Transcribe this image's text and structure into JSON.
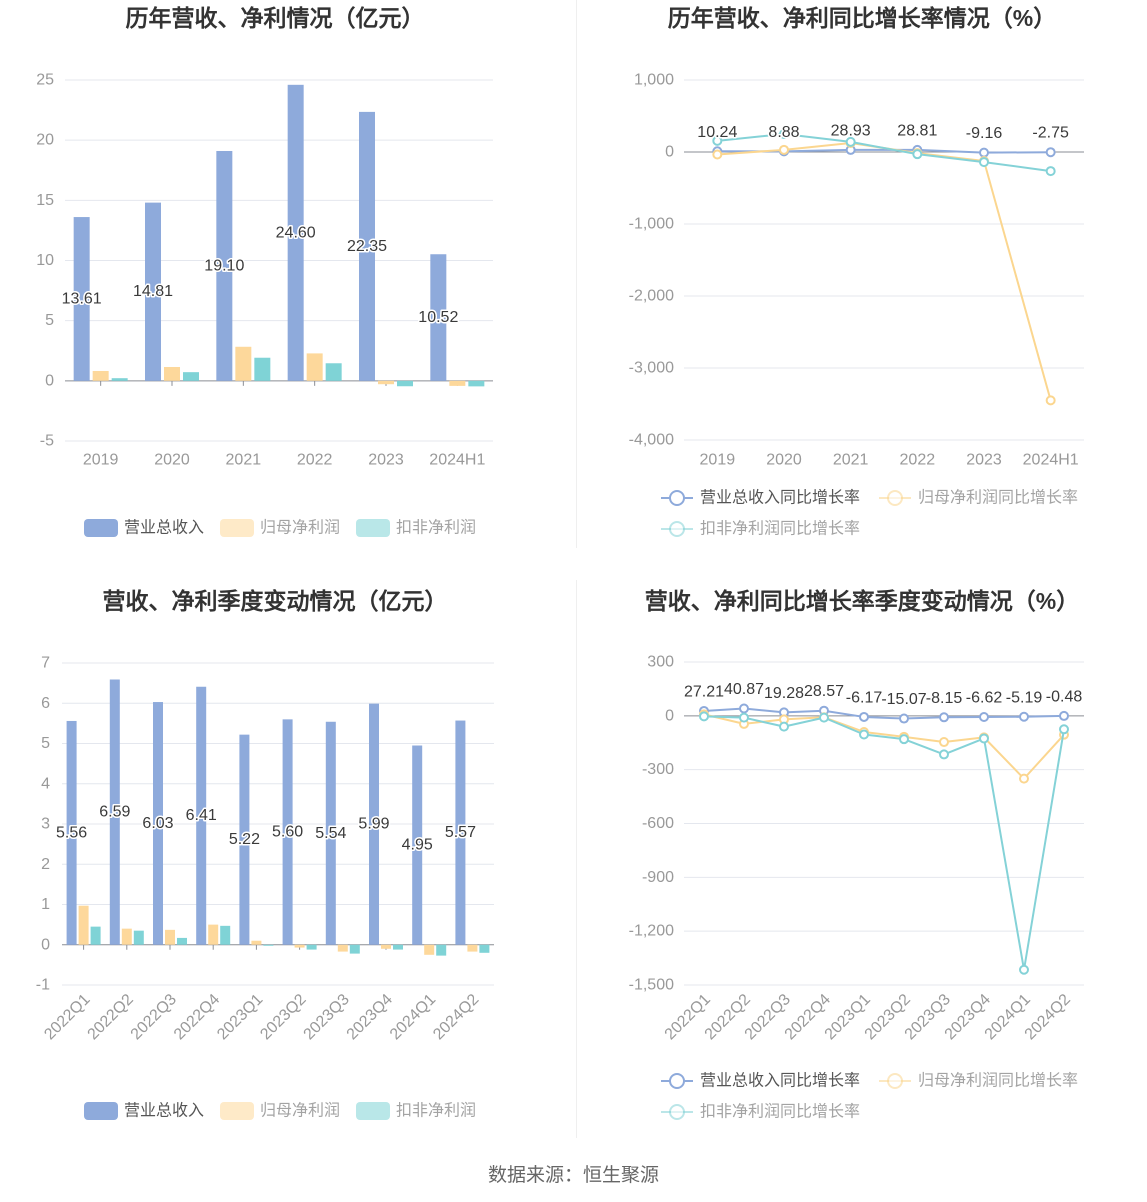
{
  "chart_data": [
    {
      "type": "bar",
      "title": "历年营收、净利情况（亿元）",
      "categories": [
        "2019",
        "2020",
        "2021",
        "2022",
        "2023",
        "2024H1"
      ],
      "ylim": [
        -5,
        25
      ],
      "ytick_labels": [
        "25",
        "20",
        "15",
        "10",
        "5",
        "0",
        "-5"
      ],
      "grid": true,
      "legend": "bottom",
      "series": [
        {
          "name": "营业总收入",
          "color": "#8eaadb",
          "values": [
            13.61,
            14.81,
            19.1,
            24.6,
            22.35,
            10.52
          ],
          "labels": [
            "13.61",
            "14.81",
            "19.10",
            "24.60",
            "22.35",
            "10.52"
          ]
        },
        {
          "name": "归母净利润",
          "color": "#fdd89b",
          "values": [
            0.82,
            1.15,
            2.83,
            2.28,
            -0.28,
            -0.42
          ]
        },
        {
          "name": "扣非净利润",
          "color": "#7fd3d6",
          "values": [
            0.22,
            0.72,
            1.92,
            1.46,
            -0.45,
            -0.46
          ]
        }
      ]
    },
    {
      "type": "line",
      "title": "历年营收、净利同比增长率情况（%）",
      "categories": [
        "2019",
        "2020",
        "2021",
        "2022",
        "2023",
        "2024H1"
      ],
      "ylim": [
        -4000,
        1000
      ],
      "ytick_labels": [
        "1,000",
        "0",
        "-1,000",
        "-2,000",
        "-3,000",
        "-4,000"
      ],
      "grid": true,
      "legend": "bottom",
      "series": [
        {
          "name": "营业总收入同比增长率",
          "color": "#8eaadb",
          "values": [
            10.24,
            8.88,
            28.93,
            28.81,
            -9.16,
            -2.75
          ],
          "labels": [
            "10.24",
            "8.88",
            "28.93",
            "28.81",
            "-9.16",
            "-2.75"
          ]
        },
        {
          "name": "归母净利润同比增长率",
          "color": "#fbd68f",
          "values": [
            -35,
            30,
            125,
            -15,
            -125,
            -3450
          ]
        },
        {
          "name": "扣非净利润同比增长率",
          "color": "#84d2d7",
          "values": [
            155,
            250,
            140,
            -30,
            -140,
            -265
          ]
        }
      ]
    },
    {
      "type": "bar",
      "title": "营收、净利季度变动情况（亿元）",
      "categories": [
        "2022Q1",
        "2022Q2",
        "2022Q3",
        "2022Q4",
        "2023Q1",
        "2023Q2",
        "2023Q3",
        "2023Q4",
        "2024Q1",
        "2024Q2"
      ],
      "ylim": [
        -1,
        7
      ],
      "ytick_labels": [
        "7",
        "6",
        "5",
        "4",
        "3",
        "2",
        "1",
        "0",
        "-1"
      ],
      "grid": true,
      "legend": "bottom",
      "series": [
        {
          "name": "营业总收入",
          "color": "#8eaadb",
          "values": [
            5.56,
            6.59,
            6.03,
            6.41,
            5.22,
            5.6,
            5.54,
            5.99,
            4.95,
            5.57
          ],
          "labels": [
            "5.56",
            "6.59",
            "6.03",
            "6.41",
            "5.22",
            "5.60",
            "5.54",
            "5.99",
            "4.95",
            "5.57"
          ]
        },
        {
          "name": "归母净利润",
          "color": "#fdd89b",
          "values": [
            0.97,
            0.4,
            0.37,
            0.5,
            0.1,
            -0.07,
            -0.17,
            -0.1,
            -0.25,
            -0.17
          ]
        },
        {
          "name": "扣非净利润",
          "color": "#7fd3d6",
          "values": [
            0.45,
            0.35,
            0.17,
            0.47,
            -0.02,
            -0.12,
            -0.22,
            -0.12,
            -0.27,
            -0.2
          ]
        }
      ]
    },
    {
      "type": "line",
      "title": "营收、净利同比增长率季度变动情况（%）",
      "categories": [
        "2022Q1",
        "2022Q2",
        "2022Q3",
        "2022Q4",
        "2023Q1",
        "2023Q2",
        "2023Q3",
        "2023Q4",
        "2024Q1",
        "2024Q2"
      ],
      "ylim": [
        -1500,
        300
      ],
      "ytick_labels": [
        "300",
        "0",
        "-300",
        "-600",
        "-900",
        "-1,200",
        "-1,500"
      ],
      "grid": true,
      "legend": "bottom",
      "series": [
        {
          "name": "营业总收入同比增长率",
          "color": "#8eaadb",
          "values": [
            27.21,
            40.87,
            19.28,
            28.57,
            -6.17,
            -15.07,
            -8.15,
            -6.62,
            -5.19,
            -0.48
          ],
          "labels": [
            "27.21",
            "40.87",
            "19.28",
            "28.57",
            "-6.17",
            "-15.07",
            "-8.15",
            "-6.62",
            "-5.19",
            "-0.48"
          ]
        },
        {
          "name": "归母净利润同比增长率",
          "color": "#fbd68f",
          "values": [
            8,
            -45,
            -20,
            -8,
            -90,
            -117,
            -146,
            -120,
            -350,
            -105
          ]
        },
        {
          "name": "扣非净利润同比增长率",
          "color": "#84d2d7",
          "values": [
            -3,
            -10,
            -60,
            -10,
            -104,
            -130,
            -215,
            -126,
            -1415,
            -75
          ]
        }
      ]
    }
  ],
  "footer": {
    "source": "数据来源：恒生聚源"
  }
}
